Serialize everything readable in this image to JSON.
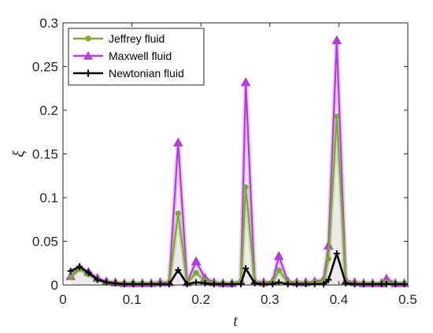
{
  "chart_data": {
    "type": "line",
    "xlabel": "t",
    "ylabel": "ξ",
    "xlim": [
      0,
      0.5
    ],
    "ylim": [
      0,
      0.3
    ],
    "xticks": [
      0,
      0.1,
      0.2,
      0.3,
      0.4,
      0.5
    ],
    "xtick_labels": [
      "0",
      "0.1",
      "0.2",
      "0.3",
      "0.4",
      "0.5"
    ],
    "yticks": [
      0,
      0.05,
      0.1,
      0.15,
      0.2,
      0.25,
      0.3
    ],
    "ytick_labels": [
      "0",
      "0.05",
      "0.1",
      "0.15",
      "0.2",
      "0.25",
      "0.3"
    ],
    "grid": false,
    "legend_position": "top-left",
    "series": [
      {
        "name": "Maxwell fluid",
        "color": "#b23dd9",
        "marker": "triangle",
        "x": [
          0.011,
          0.024,
          0.037,
          0.05,
          0.063,
          0.076,
          0.089,
          0.102,
          0.115,
          0.128,
          0.141,
          0.154,
          0.167,
          0.18,
          0.193,
          0.206,
          0.219,
          0.232,
          0.245,
          0.258,
          0.265,
          0.278,
          0.291,
          0.304,
          0.313,
          0.326,
          0.339,
          0.352,
          0.365,
          0.378,
          0.385,
          0.397,
          0.41,
          0.423,
          0.436,
          0.449,
          0.462,
          0.469,
          0.482,
          0.495
        ],
        "y": [
          0.01,
          0.02,
          0.015,
          0.008,
          0.004,
          0.003,
          0.002,
          0.002,
          0.002,
          0.002,
          0.003,
          0.003,
          0.163,
          0.003,
          0.027,
          0.008,
          0.003,
          0.002,
          0.002,
          0.004,
          0.232,
          0.004,
          0.003,
          0.004,
          0.033,
          0.004,
          0.003,
          0.003,
          0.004,
          0.006,
          0.045,
          0.28,
          0.005,
          0.003,
          0.002,
          0.002,
          0.002,
          0.007,
          0.002,
          0.002
        ]
      },
      {
        "name": "Jeffrey fluid",
        "color": "#77ac30",
        "marker": "circle",
        "x": [
          0.011,
          0.024,
          0.037,
          0.05,
          0.063,
          0.076,
          0.089,
          0.102,
          0.115,
          0.128,
          0.141,
          0.154,
          0.167,
          0.18,
          0.193,
          0.206,
          0.219,
          0.232,
          0.245,
          0.258,
          0.265,
          0.278,
          0.291,
          0.304,
          0.313,
          0.326,
          0.339,
          0.352,
          0.365,
          0.378,
          0.385,
          0.397,
          0.41,
          0.423,
          0.436,
          0.449,
          0.462,
          0.469,
          0.482,
          0.495
        ],
        "y": [
          0.009,
          0.018,
          0.012,
          0.006,
          0.003,
          0.002,
          0.002,
          0.002,
          0.002,
          0.002,
          0.002,
          0.002,
          0.082,
          0.002,
          0.014,
          0.005,
          0.002,
          0.002,
          0.002,
          0.003,
          0.112,
          0.003,
          0.002,
          0.003,
          0.017,
          0.003,
          0.002,
          0.002,
          0.003,
          0.004,
          0.03,
          0.193,
          0.003,
          0.002,
          0.002,
          0.002,
          0.002,
          0.003,
          0.002,
          0.002
        ]
      },
      {
        "name": "Newtonian fluid",
        "color": "#000000",
        "marker": "plus",
        "x": [
          0.011,
          0.024,
          0.037,
          0.05,
          0.063,
          0.076,
          0.089,
          0.102,
          0.115,
          0.128,
          0.141,
          0.154,
          0.167,
          0.18,
          0.193,
          0.206,
          0.219,
          0.232,
          0.245,
          0.258,
          0.265,
          0.278,
          0.291,
          0.304,
          0.313,
          0.326,
          0.339,
          0.352,
          0.365,
          0.378,
          0.385,
          0.397,
          0.41,
          0.423,
          0.436,
          0.449,
          0.462,
          0.469,
          0.482,
          0.495
        ],
        "y": [
          0.016,
          0.021,
          0.014,
          0.006,
          0.003,
          0.002,
          0.001,
          0.001,
          0.001,
          0.001,
          0.001,
          0.001,
          0.017,
          0.001,
          0.003,
          0.002,
          0.001,
          0.001,
          0.001,
          0.001,
          0.019,
          0.002,
          0.001,
          0.001,
          0.003,
          0.001,
          0.001,
          0.001,
          0.001,
          0.001,
          0.006,
          0.036,
          0.002,
          0.001,
          0.001,
          0.001,
          0.001,
          0.001,
          0.001,
          0.001
        ]
      }
    ]
  }
}
